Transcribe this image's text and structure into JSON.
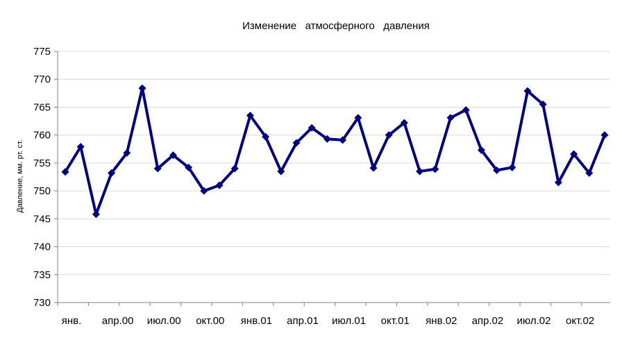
{
  "chart_data": {
    "type": "line",
    "title": "Изменение   атмосферного   давления",
    "xlabel": "",
    "ylabel": "Давление, мм. рт. ст.",
    "ylim": [
      730,
      775
    ],
    "ytick_step": 5,
    "grid": true,
    "legend": "none",
    "x_tick_labels": [
      "янв.",
      "апр.00",
      "июл.00",
      "окт.00",
      "янв.01",
      "апр.01",
      "июл.01",
      "окт.01",
      "янв.02",
      "апр.02",
      "июл.02",
      "окт.02"
    ],
    "series": [
      {
        "color": "#000080",
        "marker": "diamond",
        "values": [
          753.4,
          757.9,
          745.8,
          753.2,
          756.8,
          768.4,
          754.0,
          756.4,
          754.2,
          750.0,
          751.0,
          754.0,
          763.5,
          759.7,
          753.5,
          758.6,
          761.3,
          759.3,
          759.1,
          763.1,
          754.1,
          760.0,
          762.2,
          753.5,
          753.9,
          763.1,
          764.5,
          757.3,
          753.7,
          754.2,
          767.9,
          765.5,
          751.5,
          756.6,
          753.2,
          760.0
        ]
      }
    ]
  }
}
